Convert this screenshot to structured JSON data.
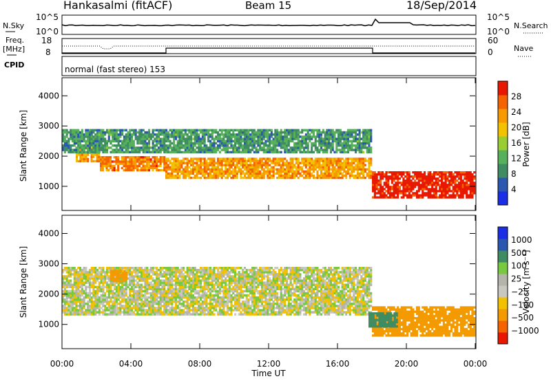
{
  "header": {
    "title": "Hankasalmi (fitACF)",
    "beam": "Beam 15",
    "date": "18/Sep/2014"
  },
  "top_panels": {
    "nsky_label": "N.Sky",
    "nsky_ticks": [
      "10^5",
      "10^0"
    ],
    "nsearch_label": "N.Search",
    "nsearch_ticks": [
      "10^5",
      "10^0"
    ],
    "freq_label_1": "Freq.",
    "freq_label_2": "[MHz]",
    "freq_ticks": [
      "18",
      "8"
    ],
    "nave_label": "Nave",
    "nave_ticks": [
      "60",
      "0"
    ],
    "cpid_label": "CPID",
    "cpid_text": "normal (fast stereo) 153"
  },
  "colors": {
    "power_scale": [
      "#1a2ee6",
      "#2a57b0",
      "#3f8c63",
      "#57b05a",
      "#9acd32",
      "#f2c200",
      "#f79a00",
      "#f56200",
      "#e81800"
    ],
    "velocity_scale": [
      "#e81800",
      "#f56200",
      "#f29a00",
      "#f2c200",
      "#c8c8c0",
      "#b4b4aa",
      "#77c940",
      "#3f8c63",
      "#2a57b0",
      "#1a2ee6"
    ]
  },
  "chart_data": [
    {
      "type": "heatmap",
      "title": "",
      "quantity": "Power",
      "colorbar_label": "Power [dB]",
      "colorbar_ticks": [
        "28",
        "24",
        "20",
        "16",
        "12",
        "8",
        "4"
      ],
      "xlabel": "",
      "ylabel": "Slant Range [km]",
      "x_ticks": [
        "00:00",
        "04:00",
        "08:00",
        "12:00",
        "16:00",
        "20:00",
        "00:00"
      ],
      "y_ticks": [
        "1000",
        "2000",
        "3000",
        "4000"
      ],
      "xlim": [
        0,
        24
      ],
      "ylim": [
        200,
        4600
      ],
      "bands": [
        {
          "t": [
            0.8,
            2.2
          ],
          "r": [
            1800,
            2300
          ],
          "db": 22
        },
        {
          "t": [
            2.2,
            6.0
          ],
          "r": [
            1500,
            2000
          ],
          "db": 24
        },
        {
          "t": [
            6.0,
            18.0
          ],
          "r": [
            1250,
            1950
          ],
          "db": 22
        },
        {
          "t": [
            18.0,
            24.0
          ],
          "r": [
            600,
            1500
          ],
          "db": 30
        },
        {
          "t": [
            0.0,
            18.0
          ],
          "r": [
            2100,
            2900
          ],
          "db": 10
        }
      ]
    },
    {
      "type": "heatmap",
      "title": "",
      "quantity": "Velocity",
      "colorbar_label": "Velocity [m s⁻¹]",
      "colorbar_ticks": [
        "1000",
        "500",
        "100",
        "25",
        "−25",
        "−100",
        "−500",
        "−1000"
      ],
      "xlabel": "Time UT",
      "ylabel": "Slant Range [km]",
      "x_ticks": [
        "00:00",
        "04:00",
        "08:00",
        "12:00",
        "16:00",
        "20:00",
        "00:00"
      ],
      "y_ticks": [
        "1000",
        "2000",
        "3000",
        "4000"
      ],
      "xlim": [
        0,
        24
      ],
      "ylim": [
        200,
        4600
      ],
      "bands": [
        {
          "t": [
            0.0,
            18.0
          ],
          "r": [
            1300,
            2900
          ],
          "v": 0
        },
        {
          "t": [
            18.0,
            24.0
          ],
          "r": [
            600,
            1600
          ],
          "v": -200
        },
        {
          "t": [
            2.8,
            3.8
          ],
          "r": [
            2400,
            2800
          ],
          "v": -300
        },
        {
          "t": [
            17.8,
            19.5
          ],
          "r": [
            900,
            1400
          ],
          "v": 400
        }
      ]
    }
  ]
}
